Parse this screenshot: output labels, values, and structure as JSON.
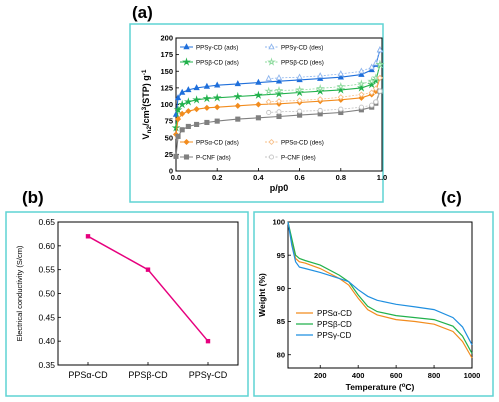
{
  "panels": [
    {
      "label": "(a)"
    },
    {
      "label": "(b)"
    },
    {
      "label": "(c)"
    }
  ],
  "chart_data": [
    {
      "panel": "(a)",
      "type": "line",
      "xlabel": "p/p0",
      "ylabel_parts": [
        "V",
        "n2",
        "/cm",
        "3",
        "(STP) g",
        "-1"
      ],
      "xlim": [
        0.0,
        1.0
      ],
      "ylim": [
        0,
        200
      ],
      "xticks": [
        0.0,
        0.2,
        0.4,
        0.6,
        0.8,
        1.0
      ],
      "xtick_labels": [
        "0.0",
        "0.2",
        "0.4",
        "0.6",
        "0.8",
        "1.0"
      ],
      "yticks": [
        0,
        25,
        50,
        75,
        100,
        125,
        150,
        175,
        200
      ],
      "ytick_labels": [
        "0",
        "25",
        "50",
        "75",
        "100",
        "125",
        "150",
        "175",
        "200"
      ],
      "legend_placement": "top (PPSγ, PPSβ) and bottom (PPSα, P-CNF)",
      "series": [
        {
          "name": "PPSγ-CD (ads)",
          "color": "#1f6fdb",
          "marker": "triangle",
          "dashed": false,
          "x": [
            0.0,
            0.01,
            0.03,
            0.06,
            0.1,
            0.15,
            0.2,
            0.3,
            0.4,
            0.5,
            0.6,
            0.7,
            0.8,
            0.9,
            0.95,
            0.97,
            0.99
          ],
          "y": [
            85,
            110,
            118,
            122,
            125,
            127,
            129,
            131,
            133,
            135,
            137,
            139,
            141,
            145,
            152,
            160,
            182
          ]
        },
        {
          "name": "PPSγ-CD (des)",
          "color": "#8fb6ee",
          "marker": "triangle-open",
          "dashed": true,
          "x": [
            0.99,
            0.97,
            0.95,
            0.9,
            0.8,
            0.7,
            0.6,
            0.5,
            0.45
          ],
          "y": [
            182,
            162,
            156,
            150,
            146,
            143,
            141,
            140,
            139
          ]
        },
        {
          "name": "PPSβ-CD (ads)",
          "color": "#22b14c",
          "marker": "star",
          "dashed": false,
          "x": [
            0.0,
            0.01,
            0.03,
            0.06,
            0.1,
            0.15,
            0.2,
            0.3,
            0.4,
            0.5,
            0.6,
            0.7,
            0.8,
            0.9,
            0.95,
            0.97,
            0.99
          ],
          "y": [
            65,
            92,
            100,
            104,
            107,
            109,
            110,
            112,
            114,
            116,
            118,
            120,
            122,
            125,
            130,
            136,
            160
          ]
        },
        {
          "name": "PPSβ-CD (des)",
          "color": "#8fdb9f",
          "marker": "star-open",
          "dashed": true,
          "x": [
            0.99,
            0.97,
            0.95,
            0.9,
            0.8,
            0.7,
            0.6,
            0.5,
            0.45
          ],
          "y": [
            160,
            140,
            135,
            131,
            127,
            124,
            122,
            121,
            120
          ]
        },
        {
          "name": "PPSα-CD (ads)",
          "color": "#f28c1e",
          "marker": "diamond",
          "dashed": false,
          "x": [
            0.0,
            0.01,
            0.03,
            0.06,
            0.1,
            0.15,
            0.2,
            0.3,
            0.4,
            0.5,
            0.6,
            0.7,
            0.8,
            0.9,
            0.95,
            0.97,
            0.99
          ],
          "y": [
            55,
            78,
            86,
            90,
            93,
            95,
            96,
            98,
            100,
            101,
            103,
            105,
            107,
            110,
            115,
            120,
            140
          ]
        },
        {
          "name": "PPSα-CD (des)",
          "color": "#f7c08a",
          "marker": "diamond-open",
          "dashed": true,
          "x": [
            0.99,
            0.97,
            0.95,
            0.9,
            0.8,
            0.7,
            0.6,
            0.5,
            0.45
          ],
          "y": [
            140,
            124,
            118,
            115,
            111,
            108,
            106,
            105,
            104
          ]
        },
        {
          "name": "P-CNF (ads)",
          "color": "#808080",
          "marker": "square",
          "dashed": false,
          "x": [
            0.0,
            0.01,
            0.03,
            0.06,
            0.1,
            0.15,
            0.2,
            0.3,
            0.4,
            0.5,
            0.6,
            0.7,
            0.8,
            0.9,
            0.95,
            0.97,
            0.99
          ],
          "y": [
            22,
            52,
            62,
            67,
            70,
            73,
            75,
            78,
            80,
            82,
            84,
            86,
            88,
            92,
            96,
            102,
            120
          ]
        },
        {
          "name": "P-CNF (des)",
          "color": "#c4c4c4",
          "marker": "circle-open",
          "dashed": true,
          "x": [
            0.99,
            0.97,
            0.95,
            0.9,
            0.8,
            0.7,
            0.6,
            0.5,
            0.45
          ],
          "y": [
            120,
            104,
            99,
            96,
            93,
            91,
            90,
            89,
            88
          ]
        }
      ]
    },
    {
      "panel": "(b)",
      "type": "line",
      "ylabel": "Electrical conductivity (S/cm)",
      "xlabel": "",
      "categories": [
        "PPSα-CD",
        "PPSβ-CD",
        "PPSγ-CD"
      ],
      "values": [
        0.62,
        0.55,
        0.4
      ],
      "ylim": [
        0.35,
        0.65
      ],
      "yticks": [
        0.35,
        0.4,
        0.45,
        0.5,
        0.55,
        0.6,
        0.65
      ],
      "ytick_labels": [
        "0.35",
        "0.40",
        "0.45",
        "0.50",
        "0.55",
        "0.60",
        "0.65"
      ],
      "color": "#e6007e"
    },
    {
      "panel": "(c)",
      "type": "line",
      "xlabel_parts": [
        "Temperature (",
        "o",
        "C)"
      ],
      "ylabel": "Weight (%)",
      "xlim": [
        30,
        1000
      ],
      "ylim": [
        78,
        100
      ],
      "xticks": [
        200,
        400,
        600,
        800,
        1000
      ],
      "xtick_labels": [
        "200",
        "400",
        "600",
        "800",
        "1000"
      ],
      "yticks": [
        80,
        85,
        90,
        95,
        100
      ],
      "ytick_labels": [
        "80",
        "85",
        "90",
        "95",
        "100"
      ],
      "legend_placement": "bottom-left",
      "series": [
        {
          "name": "PPSα-CD",
          "color": "#f28c1e",
          "x": [
            30,
            50,
            70,
            90,
            120,
            200,
            300,
            350,
            400,
            450,
            500,
            600,
            700,
            800,
            900,
            950,
            1000
          ],
          "y": [
            100,
            97,
            94.5,
            94,
            93.8,
            93,
            91.5,
            90.5,
            88.5,
            86.8,
            86,
            85.3,
            85,
            84.6,
            83.5,
            82,
            79.5
          ]
        },
        {
          "name": "PPSβ-CD",
          "color": "#22b14c",
          "x": [
            30,
            50,
            70,
            90,
            120,
            200,
            300,
            350,
            400,
            450,
            500,
            600,
            700,
            800,
            900,
            950,
            1000
          ],
          "y": [
            100,
            97.5,
            95,
            94.5,
            94.2,
            93.5,
            92,
            91,
            89,
            87.3,
            86.5,
            85.9,
            85.6,
            85.3,
            84.3,
            82.8,
            80.2
          ]
        },
        {
          "name": "PPSγ-CD",
          "color": "#1f8fe0",
          "x": [
            30,
            50,
            70,
            90,
            120,
            200,
            300,
            350,
            400,
            450,
            500,
            600,
            700,
            800,
            900,
            950,
            1000
          ],
          "y": [
            100,
            96.5,
            94,
            93.2,
            93,
            92.4,
            91.5,
            91,
            89.8,
            88.8,
            88.2,
            87.6,
            87.2,
            86.8,
            85.6,
            84.2,
            81.5
          ]
        }
      ]
    }
  ]
}
